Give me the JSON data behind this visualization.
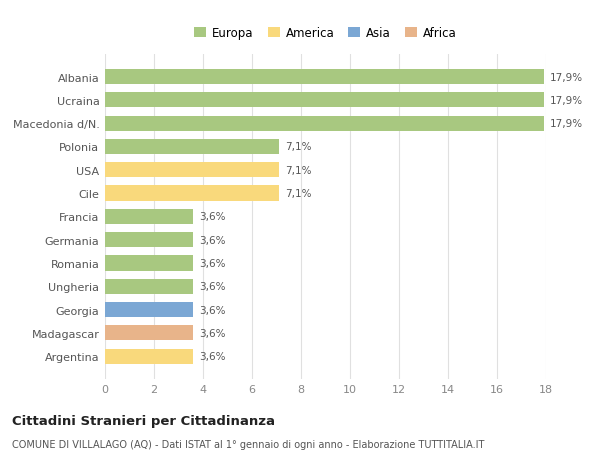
{
  "categories": [
    "Albania",
    "Ucraina",
    "Macedonia d/N.",
    "Polonia",
    "USA",
    "Cile",
    "Francia",
    "Germania",
    "Romania",
    "Ungheria",
    "Georgia",
    "Madagascar",
    "Argentina"
  ],
  "values": [
    17.9,
    17.9,
    17.9,
    7.1,
    7.1,
    7.1,
    3.6,
    3.6,
    3.6,
    3.6,
    3.6,
    3.6,
    3.6
  ],
  "labels": [
    "17,9%",
    "17,9%",
    "17,9%",
    "7,1%",
    "7,1%",
    "7,1%",
    "3,6%",
    "3,6%",
    "3,6%",
    "3,6%",
    "3,6%",
    "3,6%",
    "3,6%"
  ],
  "colors": [
    "#a8c880",
    "#a8c880",
    "#a8c880",
    "#a8c880",
    "#f9d97c",
    "#f9d97c",
    "#a8c880",
    "#a8c880",
    "#a8c880",
    "#a8c880",
    "#7ba7d4",
    "#e8b48a",
    "#f9d97c"
  ],
  "legend_labels": [
    "Europa",
    "America",
    "Asia",
    "Africa"
  ],
  "legend_colors": [
    "#a8c880",
    "#f9d97c",
    "#7ba7d4",
    "#e8b48a"
  ],
  "title": "Cittadini Stranieri per Cittadinanza",
  "subtitle": "COMUNE DI VILLALAGO (AQ) - Dati ISTAT al 1° gennaio di ogni anno - Elaborazione TUTTITALIA.IT",
  "xlim": [
    0,
    18
  ],
  "xticks": [
    0,
    2,
    4,
    6,
    8,
    10,
    12,
    14,
    16,
    18
  ],
  "background_color": "#ffffff",
  "grid_color": "#e0e0e0"
}
